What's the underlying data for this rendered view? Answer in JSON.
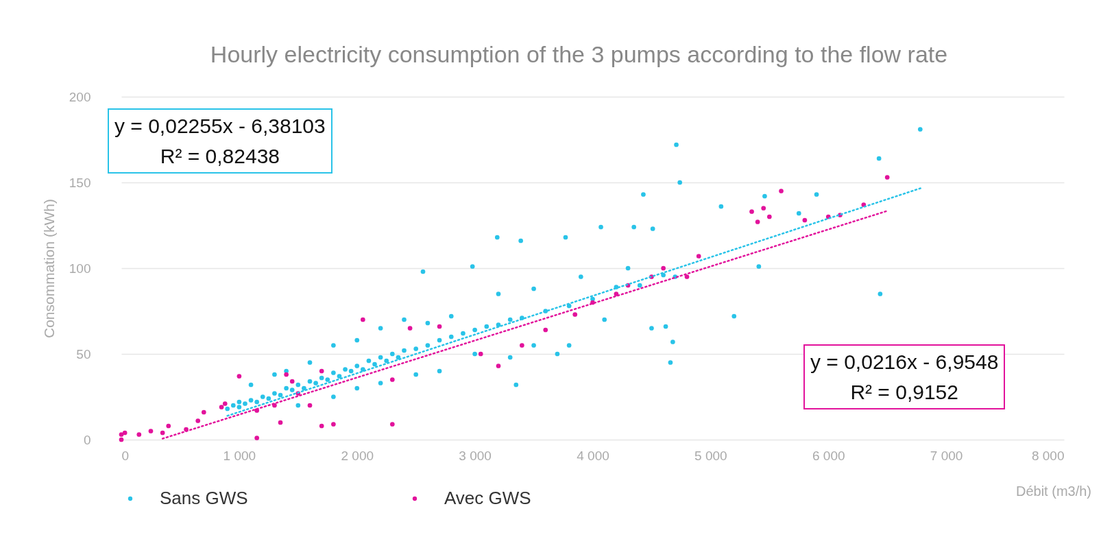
{
  "chart_data": {
    "type": "scatter",
    "title": "Hourly electricity consumption of the 3 pumps according to the flow rate",
    "xlabel": "Débit (m3/h)",
    "ylabel": "Consommation (kWh)",
    "xlim": [
      0,
      8000
    ],
    "ylim": [
      0,
      200
    ],
    "xticks": [
      0,
      {
        "value": 1000,
        "label": "1 000"
      },
      {
        "value": 2000,
        "label": "2 000"
      },
      {
        "value": 3000,
        "label": "3 000"
      },
      {
        "value": 4000,
        "label": "4 000"
      },
      {
        "value": 5000,
        "label": "5 000"
      },
      {
        "value": 6000,
        "label": "6 000"
      },
      {
        "value": 7000,
        "label": "7 000"
      },
      {
        "value": 8000,
        "label": "8 000"
      }
    ],
    "yticks": [
      0,
      50,
      100,
      150,
      200
    ],
    "grid": "y",
    "legend": "bottom",
    "marker": "circle",
    "annotations": [
      "y = 0,02255x - 6,38103\nR² = 0,82438",
      "y = 0,0216x - 6,9548\nR² = 0,9152"
    ],
    "series": [
      {
        "name": "Sans GWS",
        "color": "#29c3e8",
        "x": [
          900,
          950,
          1000,
          1000,
          1050,
          1100,
          1150,
          1200,
          1250,
          1300,
          1350,
          1400,
          1450,
          1500,
          1550,
          1600,
          1650,
          1700,
          1750,
          1800,
          1850,
          1900,
          1950,
          2000,
          2050,
          2100,
          2150,
          2200,
          2250,
          2300,
          2350,
          2400,
          2500,
          2600,
          2700,
          2800,
          2900,
          3000,
          3100,
          3200,
          3300,
          3400,
          3600,
          3800,
          4000,
          4200,
          4400,
          4600,
          1400,
          1600,
          1800,
          2000,
          2200,
          2400,
          1500,
          1800,
          2000,
          2200,
          2500,
          2700,
          3000,
          3300,
          3500,
          3700,
          3800,
          4100,
          4500,
          1300,
          1100,
          2600,
          2800,
          3200,
          3500,
          3900,
          4300,
          4700,
          6780,
          6430,
          6440,
          4710,
          4740,
          4430,
          5200,
          4660,
          4680,
          5410,
          5900,
          5460,
          5090,
          4070,
          3770,
          3190,
          3390,
          2980,
          2560,
          4350,
          4510,
          5750,
          4620,
          3350
        ],
        "values": [
          18,
          20,
          19,
          22,
          21,
          23,
          22,
          25,
          24,
          27,
          26,
          30,
          29,
          32,
          30,
          34,
          33,
          36,
          35,
          39,
          37,
          41,
          40,
          43,
          41,
          46,
          44,
          48,
          46,
          50,
          48,
          52,
          53,
          55,
          58,
          60,
          62,
          64,
          66,
          67,
          70,
          71,
          75,
          78,
          82,
          89,
          90,
          96,
          40,
          45,
          55,
          58,
          65,
          70,
          20,
          25,
          30,
          33,
          38,
          40,
          50,
          48,
          55,
          50,
          55,
          70,
          65,
          38,
          32,
          68,
          72,
          85,
          88,
          95,
          100,
          95,
          181,
          164,
          85,
          172,
          150,
          143,
          72,
          45,
          57,
          101,
          143,
          142,
          136,
          124,
          118,
          118,
          116,
          101,
          98,
          124,
          123,
          132,
          66,
          32
        ]
      },
      {
        "name": "Avec GWS",
        "color": "#e2129b",
        "x": [
          0,
          0,
          30,
          150,
          250,
          350,
          400,
          550,
          650,
          700,
          850,
          880,
          1000,
          1150,
          1350,
          1400,
          1450,
          1500,
          1600,
          1700,
          1800,
          2300,
          2050,
          2300,
          2450,
          2700,
          3050,
          3200,
          3400,
          3600,
          3850,
          4000,
          4200,
          4300,
          4500,
          4600,
          4800,
          4900,
          5400,
          5350,
          5450,
          5500,
          5600,
          5800,
          6000,
          6100,
          6300,
          6500,
          1150,
          1300,
          1700
        ],
        "values": [
          0,
          3,
          4,
          3,
          5,
          4,
          8,
          6,
          11,
          16,
          19,
          21,
          37,
          1,
          10,
          38,
          34,
          27,
          20,
          8,
          9,
          9,
          70,
          35,
          65,
          66,
          50,
          43,
          55,
          64,
          73,
          80,
          85,
          90,
          95,
          100,
          95,
          107,
          127,
          133,
          135,
          130,
          145,
          128,
          130,
          131,
          137,
          153,
          17,
          20,
          40
        ]
      },
      {
        "type": "line",
        "color": "#29c3e8",
        "line_style": "dotted",
        "marker": "none",
        "x": [
          900,
          6800
        ],
        "values": [
          13.9,
          147
        ]
      },
      {
        "type": "line",
        "color": "#e2129b",
        "line_style": "dotted",
        "marker": "none",
        "x": [
          350,
          6500
        ],
        "values": [
          0.6,
          133.4
        ]
      }
    ]
  }
}
